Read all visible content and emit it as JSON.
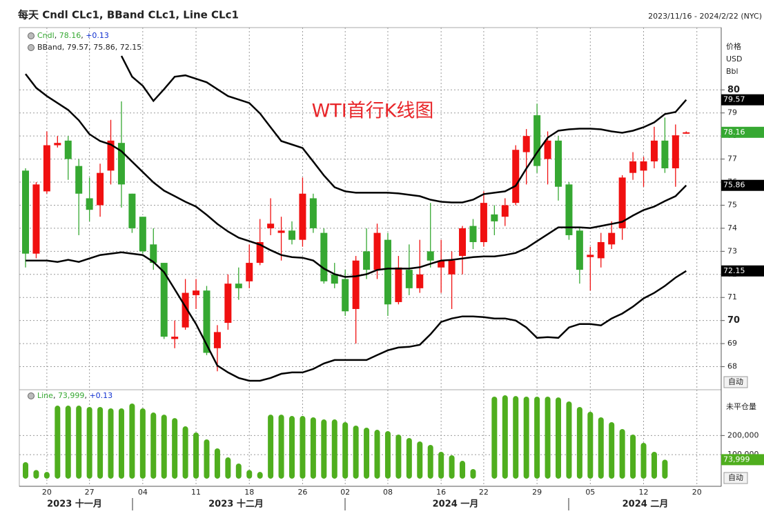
{
  "header": {
    "title": "每天 Cndl CLc1, BBand CLc1, Line CLc1",
    "range": "2023/11/16 - 2024/2/22 (NYC)"
  },
  "chart_data": [
    {
      "type": "candlestick",
      "name": "Cndl",
      "change": "+0.13",
      "annotation": "WTI首行K线图",
      "y_units": [
        "价格",
        "USD",
        "Bbl"
      ],
      "auto": "自动",
      "categories": [
        null,
        null,
        "20",
        null,
        null,
        null,
        "27",
        null,
        null,
        null,
        null,
        "04",
        null,
        null,
        null,
        null,
        "11",
        null,
        null,
        null,
        null,
        "18",
        null,
        null,
        null,
        null,
        "26",
        null,
        null,
        null,
        "02",
        null,
        null,
        null,
        "08",
        null,
        null,
        null,
        null,
        "16",
        null,
        null,
        null,
        "22",
        null,
        null,
        null,
        null,
        "29",
        null,
        null,
        null,
        null,
        "05",
        null,
        null,
        null,
        null,
        "12",
        null,
        null,
        null,
        null,
        "20"
      ],
      "open": [
        76.5,
        72.9,
        75.6,
        77.6,
        77.8,
        76.7,
        75.3,
        75.0,
        76.5,
        77.7,
        75.5,
        74.5,
        73.3,
        72.5,
        69.2,
        69.7,
        71.1,
        71.3,
        68.8,
        69.9,
        71.6,
        71.7,
        72.5,
        74.0,
        73.8,
        73.9,
        73.5,
        75.3,
        73.8,
        72.0,
        71.8,
        70.5,
        73.0,
        72.2,
        73.5,
        70.8,
        72.2,
        71.4,
        73.0,
        72.3,
        72.0,
        72.8,
        74.1,
        73.4,
        74.6,
        74.5,
        75.1,
        77.3,
        78.9,
        77.0,
        77.8,
        75.9,
        73.9,
        72.75,
        72.7,
        73.3,
        74.0,
        76.4,
        76.5,
        76.9,
        77.8,
        76.6,
        78.1,
        null
      ],
      "high": [
        76.6,
        76.0,
        78.2,
        78.0,
        78.0,
        77.0,
        76.2,
        76.8,
        78.7,
        79.5,
        75.5,
        74.5,
        74.0,
        72.5,
        70.0,
        71.8,
        71.8,
        71.5,
        69.8,
        72.0,
        72.3,
        73.3,
        74.4,
        75.3,
        74.5,
        74.3,
        76.2,
        75.5,
        74.0,
        72.5,
        72.2,
        72.8,
        74.0,
        74.2,
        73.8,
        72.8,
        73.3,
        73.5,
        75.1,
        73.5,
        73.0,
        74.1,
        74.4,
        75.6,
        75.0,
        75.3,
        77.6,
        78.3,
        79.4,
        78.2,
        78.0,
        76.0,
        74.0,
        73.2,
        73.8,
        74.3,
        76.3,
        77.3,
        77.1,
        78.4,
        78.8,
        78.5,
        78.2,
        null
      ],
      "low": [
        72.3,
        72.7,
        75.5,
        77.5,
        76.1,
        73.7,
        74.3,
        74.5,
        75.9,
        74.9,
        73.8,
        72.9,
        72.2,
        69.2,
        68.8,
        69.6,
        70.5,
        68.5,
        67.8,
        69.6,
        70.9,
        71.4,
        72.4,
        73.7,
        72.6,
        73.3,
        73.2,
        73.8,
        71.6,
        71.4,
        70.2,
        69.0,
        71.8,
        71.8,
        70.2,
        70.7,
        71.1,
        71.2,
        72.3,
        71.2,
        70.5,
        72.0,
        73.1,
        73.2,
        73.7,
        74.1,
        75.0,
        75.9,
        76.4,
        75.9,
        75.2,
        73.5,
        71.6,
        71.3,
        72.3,
        73.1,
        73.5,
        76.1,
        75.8,
        76.6,
        76.4,
        75.8,
        78.1,
        null
      ],
      "close": [
        72.9,
        75.9,
        77.6,
        77.7,
        77.0,
        75.5,
        74.8,
        76.4,
        77.8,
        75.9,
        74.0,
        73.0,
        72.5,
        69.3,
        69.3,
        71.2,
        71.3,
        68.6,
        69.5,
        71.6,
        71.4,
        72.5,
        73.4,
        74.2,
        73.9,
        73.5,
        75.5,
        74.0,
        71.7,
        71.6,
        70.4,
        72.6,
        72.2,
        73.8,
        70.7,
        72.3,
        71.4,
        72.0,
        72.6,
        72.6,
        72.6,
        74.0,
        73.4,
        75.1,
        74.3,
        75.0,
        77.4,
        78.0,
        76.7,
        77.8,
        75.8,
        73.7,
        72.2,
        72.85,
        73.4,
        73.8,
        76.2,
        76.9,
        76.9,
        77.8,
        76.6,
        78.03,
        78.16,
        null
      ],
      "up_color": "#f01010",
      "down_color": "#36a832",
      "bands": {
        "name": "BBand",
        "color": "#000000",
        "upper": [
          null,
          null,
          null,
          null,
          null,
          null,
          null,
          null,
          null,
          81.47,
          80.57,
          80.18,
          79.52,
          80.03,
          80.57,
          80.63,
          80.48,
          80.33,
          80.03,
          79.73,
          79.58,
          79.43,
          78.98,
          78.38,
          77.78,
          77.63,
          77.48,
          76.89,
          76.29,
          75.78,
          75.6,
          75.54,
          75.54,
          75.54,
          75.54,
          75.51,
          75.45,
          75.39,
          75.24,
          75.15,
          75.12,
          75.12,
          75.24,
          75.48,
          75.54,
          75.6,
          75.84,
          76.59,
          77.28,
          77.93,
          78.23,
          78.29,
          78.32,
          78.32,
          78.29,
          78.2,
          78.14,
          78.23,
          78.38,
          78.59,
          78.95,
          79.04,
          79.57,
          null
        ],
        "middle": [
          80.69,
          80.09,
          79.73,
          79.43,
          79.13,
          78.68,
          78.08,
          77.78,
          77.63,
          77.34,
          76.89,
          76.44,
          75.99,
          75.63,
          75.39,
          75.15,
          74.94,
          74.58,
          74.19,
          73.86,
          73.59,
          73.44,
          73.29,
          73.05,
          72.84,
          72.75,
          72.72,
          72.6,
          72.25,
          72.01,
          71.89,
          71.92,
          72.01,
          72.19,
          72.25,
          72.25,
          72.25,
          72.31,
          72.46,
          72.6,
          72.63,
          72.69,
          72.75,
          72.78,
          72.78,
          72.84,
          72.93,
          73.14,
          73.44,
          73.74,
          74.04,
          74.04,
          74.04,
          74.01,
          74.1,
          74.19,
          74.28,
          74.55,
          74.79,
          74.94,
          75.18,
          75.39,
          75.86,
          null
        ],
        "lower": [
          72.6,
          72.6,
          72.6,
          72.54,
          72.63,
          72.54,
          72.69,
          72.84,
          72.9,
          72.96,
          72.9,
          72.84,
          72.54,
          72.1,
          71.35,
          70.6,
          69.85,
          68.95,
          68.05,
          67.75,
          67.51,
          67.39,
          67.39,
          67.51,
          67.69,
          67.75,
          67.75,
          67.9,
          68.14,
          68.29,
          68.29,
          68.29,
          68.29,
          68.5,
          68.71,
          68.83,
          68.86,
          68.95,
          69.4,
          69.94,
          70.09,
          70.18,
          70.18,
          70.15,
          70.09,
          70.09,
          70.0,
          69.7,
          69.25,
          69.28,
          69.25,
          69.7,
          69.85,
          69.85,
          69.79,
          70.09,
          70.3,
          70.6,
          70.96,
          71.2,
          71.5,
          71.86,
          72.15,
          null
        ]
      },
      "ylim": [
        67.0,
        82.7
      ],
      "yticks": [
        68,
        69,
        70,
        71,
        72,
        73,
        74,
        75,
        76,
        77,
        78,
        79,
        80
      ],
      "grid": true,
      "months": [
        "2023 十一月",
        "2023 十二月",
        "2024 一月",
        "2024 二月"
      ]
    },
    {
      "type": "bar",
      "change": "+0.13",
      "y_label": "未平仓量",
      "auto": "自动",
      "series": [
        {
          "name": "Line",
          "color": "#4fae1e",
          "values": [
            61000,
            20000,
            10000,
            356000,
            356000,
            356000,
            349000,
            349000,
            342000,
            342000,
            367000,
            342000,
            320000,
            309000,
            291000,
            248000,
            216000,
            180000,
            133000,
            86000,
            54000,
            20000,
            10000,
            309000,
            309000,
            302000,
            302000,
            295000,
            284000,
            284000,
            270000,
            252000,
            241000,
            230000,
            223000,
            205000,
            187000,
            169000,
            151000,
            115000,
            97000,
            68000,
            25000,
            null,
            403000,
            410000,
            406000,
            403000,
            403000,
            403000,
            399000,
            378000,
            349000,
            324000,
            295000,
            270000,
            234000,
            205000,
            162000,
            115000,
            73999,
            null,
            null,
            null
          ],
          "value_labels": [
            null,
            null,
            null,
            null,
            null,
            null,
            null,
            null,
            null,
            null,
            null,
            null,
            null,
            null,
            null,
            null,
            null,
            null,
            null,
            null,
            null,
            null,
            null,
            null,
            null,
            null,
            null,
            null,
            null,
            null,
            null,
            null,
            null,
            null,
            null,
            null,
            null,
            null,
            null,
            null,
            null,
            null,
            null,
            null,
            null,
            null,
            null,
            null,
            null,
            null,
            null,
            null,
            null,
            null,
            null,
            null,
            null,
            null,
            null,
            null,
            "73,999",
            null,
            null,
            null
          ]
        }
      ],
      "ylim": [
        -65000,
        439000
      ],
      "yticks": [
        {
          "value": 100000,
          "label": "100,000"
        },
        {
          "value": 200000,
          "label": "200,000"
        }
      ]
    }
  ]
}
